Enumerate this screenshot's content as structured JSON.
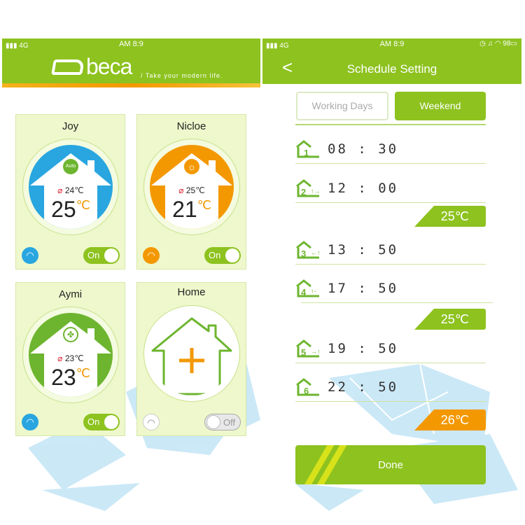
{
  "left_screen": {
    "status": {
      "network": "4G",
      "time": "AM 8:9"
    },
    "brand": {
      "logo": "beca",
      "tagline": "Take your modern life."
    },
    "devices": [
      {
        "name": "Joy",
        "mode_icon": "auto-icon",
        "mode_label": "Auto",
        "set_temp": "24℃",
        "current_temp": "25",
        "unit": "℃",
        "color": "#29a6e0",
        "power": "On"
      },
      {
        "name": "Nicloe",
        "mode_icon": "sun-icon",
        "set_temp": "25℃",
        "current_temp": "21",
        "unit": "℃",
        "color": "#f39800",
        "power": "On"
      },
      {
        "name": "Aymi",
        "mode_icon": "fan-icon",
        "set_temp": "23℃",
        "current_temp": "23",
        "unit": "℃",
        "color": "#6db52f",
        "power": "On"
      },
      {
        "name": "Home",
        "mode_icon": "add-icon",
        "power": "Off"
      }
    ]
  },
  "right_screen": {
    "status": {
      "network": "4G",
      "time": "AM 8:9",
      "battery": "98"
    },
    "title": "Schedule Setting",
    "tabs": [
      {
        "label": "Working  Days",
        "active": false
      },
      {
        "label": "Weekend",
        "active": true
      }
    ],
    "periods": [
      {
        "n": "1",
        "time": "08 : 30"
      },
      {
        "n": "2",
        "time": "12 : 00"
      },
      {
        "n": "3",
        "time": "13 : 50"
      },
      {
        "n": "4",
        "time": "17 : 50"
      },
      {
        "n": "5",
        "time": "19 : 50"
      },
      {
        "n": "6",
        "time": "22 : 50"
      }
    ],
    "temps": [
      {
        "value": "25℃",
        "color": "#8dc21f"
      },
      {
        "value": "25℃",
        "color": "#8dc21f"
      },
      {
        "value": "26℃",
        "color": "#f39800"
      }
    ],
    "done_label": "Done"
  }
}
